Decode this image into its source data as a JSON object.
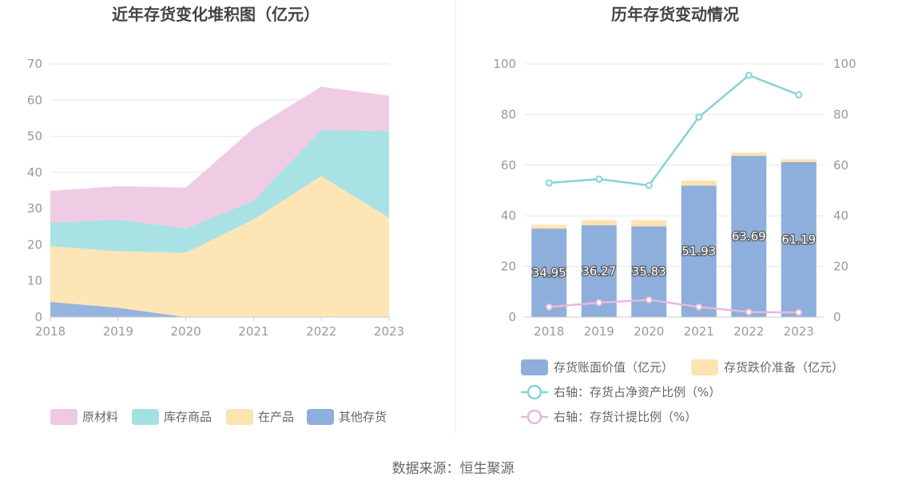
{
  "source_text": "数据来源：恒生聚源",
  "chart_data": [
    {
      "type": "area",
      "title": "近年存货变化堆积图（亿元）",
      "x": [
        "2018",
        "2019",
        "2020",
        "2021",
        "2022",
        "2023"
      ],
      "ylim": [
        0,
        70
      ],
      "yticks": [
        0,
        10,
        20,
        30,
        40,
        50,
        60,
        70
      ],
      "grid": true,
      "stacked": true,
      "legend_position": "bottom",
      "series": [
        {
          "name": "其他存货",
          "color": "#8eaedc",
          "values": [
            4.2,
            2.6,
            0.0,
            0.0,
            0.0,
            0.0
          ]
        },
        {
          "name": "在产品",
          "color": "#fde3b0",
          "values": [
            15.4,
            15.6,
            17.8,
            27.0,
            39.0,
            27.4
          ]
        },
        {
          "name": "库存商品",
          "color": "#a2e0e2",
          "values": [
            6.5,
            8.8,
            6.7,
            5.2,
            12.7,
            24.0
          ]
        },
        {
          "name": "原材料",
          "color": "#efc8e2",
          "values": [
            8.8,
            9.2,
            11.3,
            20.0,
            12.0,
            9.8
          ]
        }
      ],
      "legend_order": [
        "原材料",
        "库存商品",
        "在产品",
        "其他存货"
      ]
    },
    {
      "type": "bar",
      "title": "历年存货变动情况",
      "categories": [
        "2018",
        "2019",
        "2020",
        "2021",
        "2022",
        "2023"
      ],
      "ylim": [
        0,
        100
      ],
      "yticks": [
        0,
        20,
        40,
        60,
        80,
        100
      ],
      "y2lim": [
        0,
        100
      ],
      "y2ticks": [
        0,
        20,
        40,
        60,
        80,
        100
      ],
      "grid": true,
      "stacked": true,
      "legend_position": "bottom",
      "bar_series": [
        {
          "name": "存货账面价值（亿元）",
          "color": "#8eaedc",
          "values": [
            34.95,
            36.27,
            35.83,
            51.93,
            63.69,
            61.19
          ],
          "labels": [
            "34.95",
            "36.27",
            "35.83",
            "51.93",
            "63.69",
            "61.19"
          ]
        },
        {
          "name": "存货跌价准备（亿元）",
          "color": "#fde3b0",
          "values": [
            1.5,
            2.0,
            2.5,
            2.0,
            1.3,
            1.1
          ]
        }
      ],
      "line_series": [
        {
          "name": "右轴：存货占净资产比例（%）",
          "color": "#85d3d6",
          "values": [
            53.0,
            54.5,
            52.0,
            79.0,
            95.5,
            87.8
          ]
        },
        {
          "name": "右轴：存货计提比例（%）",
          "color": "#e7b9dc",
          "values": [
            4.0,
            5.7,
            6.8,
            4.0,
            2.0,
            1.8
          ]
        }
      ]
    }
  ]
}
